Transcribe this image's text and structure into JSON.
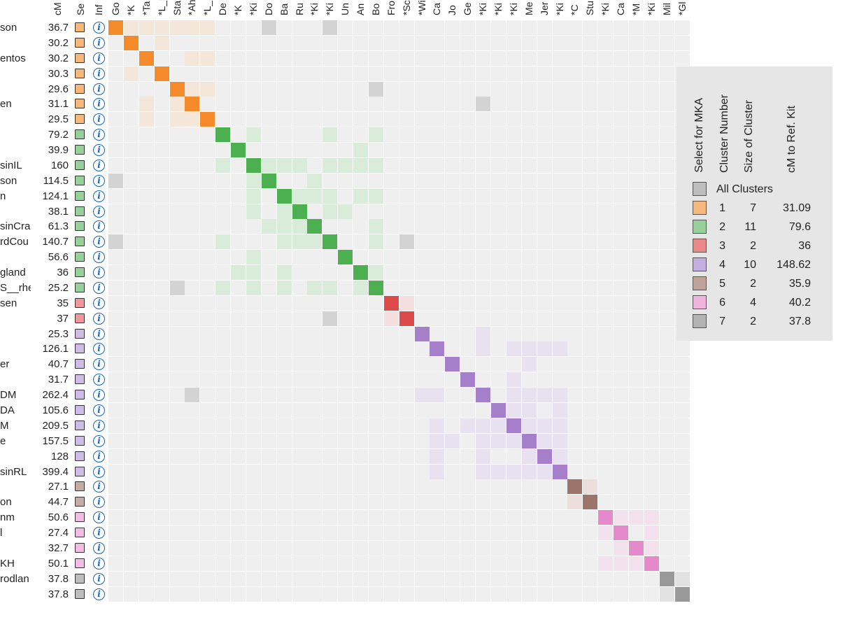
{
  "headers": {
    "name": "",
    "cm": "cM",
    "select": "Se",
    "info": "Inf",
    "matches": [
      "Go",
      "*K",
      "*Ta",
      "*L_l",
      "Sta",
      "*Ah",
      "*L_",
      "De",
      "*K",
      "*Ki",
      "Do",
      "Ba",
      "Ru",
      "*Ki",
      "*Ki",
      "Un",
      "An",
      "Bo",
      "Fro",
      "*Sc",
      "*Wi",
      "Ca",
      "Jo",
      "Ge",
      "*Ki",
      "*Ki",
      "*Ki",
      "Me",
      "Jer",
      "*Ki",
      "*C",
      "Stu",
      "*Ki",
      "Ca",
      "*M",
      "*Ki",
      "Mil",
      "*Gl"
    ]
  },
  "rows": [
    {
      "name": "son",
      "cm": "36.7"
    },
    {
      "name": "",
      "cm": "30.2"
    },
    {
      "name": "entos",
      "cm": "30.2"
    },
    {
      "name": "",
      "cm": "30.3"
    },
    {
      "name": "",
      "cm": "29.6"
    },
    {
      "name": "en",
      "cm": "31.1"
    },
    {
      "name": "",
      "cm": "29.5"
    },
    {
      "name": "",
      "cm": "79.2"
    },
    {
      "name": "",
      "cm": "39.9"
    },
    {
      "name": "sinIL",
      "cm": "160"
    },
    {
      "name": "son",
      "cm": "114.5"
    },
    {
      "name": "n",
      "cm": "124.1"
    },
    {
      "name": "",
      "cm": "38.1"
    },
    {
      "name": "sinCra",
      "cm": "61.3"
    },
    {
      "name": "rdCou",
      "cm": "140.7"
    },
    {
      "name": "",
      "cm": "56.6"
    },
    {
      "name": "gland",
      "cm": "36"
    },
    {
      "name": "S__rhe",
      "cm": "25.2"
    },
    {
      "name": "sen",
      "cm": "35"
    },
    {
      "name": "",
      "cm": "37"
    },
    {
      "name": "",
      "cm": "25.3"
    },
    {
      "name": "",
      "cm": "126.1"
    },
    {
      "name": "er",
      "cm": "40.7"
    },
    {
      "name": "",
      "cm": "31.7"
    },
    {
      "name": "DM",
      "cm": "262.4"
    },
    {
      "name": "DA",
      "cm": "105.6"
    },
    {
      "name": "M",
      "cm": "209.5"
    },
    {
      "name": "e",
      "cm": "157.5"
    },
    {
      "name": "",
      "cm": "128"
    },
    {
      "name": "sinRL",
      "cm": "399.4"
    },
    {
      "name": "",
      "cm": "27.1"
    },
    {
      "name": "on",
      "cm": "44.7"
    },
    {
      "name": "nm",
      "cm": "50.6"
    },
    {
      "name": "l",
      "cm": "27.4"
    },
    {
      "name": "",
      "cm": "32.7"
    },
    {
      "name": "KH",
      "cm": "50.1"
    },
    {
      "name": "rodlan",
      "cm": "37.8"
    },
    {
      "name": "",
      "cm": "37.8"
    }
  ],
  "info_icon": "i",
  "clusters": [
    {
      "start": 0,
      "size": 7,
      "dark": "#f58a2a",
      "light": "#f5e6da",
      "box": "#f6b87a"
    },
    {
      "start": 7,
      "size": 11,
      "dark": "#4caf50",
      "light": "#d9ecd9",
      "box": "#98d09b"
    },
    {
      "start": 18,
      "size": 2,
      "dark": "#dc4a4a",
      "light": "#f4dede",
      "box": "#f0999c"
    },
    {
      "start": 20,
      "size": 10,
      "dark": "#a67fca",
      "light": "#e8e1f0",
      "box": "#cdbde6"
    },
    {
      "start": 30,
      "size": 2,
      "dark": "#9c7469",
      "light": "#ecdfdb",
      "box": "#c6aca4"
    },
    {
      "start": 32,
      "size": 4,
      "dark": "#e588cc",
      "light": "#f3e2ee",
      "box": "#f2bde4"
    },
    {
      "start": 36,
      "size": 2,
      "dark": "#999999",
      "light": "#e2e2e2",
      "box": "#bdbdbd"
    }
  ],
  "colors": {
    "empty": "#efefef",
    "cross": "#d3d3d3"
  },
  "light_cells": [
    [
      0,
      1
    ],
    [
      0,
      2
    ],
    [
      0,
      3
    ],
    [
      0,
      4
    ],
    [
      0,
      5
    ],
    [
      0,
      6
    ],
    [
      1,
      3
    ],
    [
      2,
      5
    ],
    [
      2,
      6
    ],
    [
      3,
      1
    ],
    [
      4,
      5
    ],
    [
      4,
      6
    ],
    [
      5,
      2
    ],
    [
      5,
      4
    ],
    [
      6,
      2
    ],
    [
      6,
      4
    ],
    [
      6,
      5
    ],
    [
      7,
      9
    ],
    [
      7,
      14
    ],
    [
      7,
      17
    ],
    [
      8,
      16
    ],
    [
      9,
      7
    ],
    [
      9,
      10
    ],
    [
      9,
      11
    ],
    [
      9,
      12
    ],
    [
      9,
      14
    ],
    [
      9,
      15
    ],
    [
      9,
      16
    ],
    [
      9,
      17
    ],
    [
      10,
      9
    ],
    [
      10,
      13
    ],
    [
      11,
      9
    ],
    [
      11,
      12
    ],
    [
      11,
      13
    ],
    [
      11,
      14
    ],
    [
      11,
      16
    ],
    [
      11,
      17
    ],
    [
      12,
      9
    ],
    [
      12,
      11
    ],
    [
      12,
      14
    ],
    [
      12,
      15
    ],
    [
      13,
      10
    ],
    [
      13,
      11
    ],
    [
      13,
      12
    ],
    [
      13,
      17
    ],
    [
      14,
      7
    ],
    [
      14,
      11
    ],
    [
      14,
      12
    ],
    [
      14,
      13
    ],
    [
      14,
      17
    ],
    [
      15,
      9
    ],
    [
      16,
      8
    ],
    [
      16,
      9
    ],
    [
      16,
      11
    ],
    [
      16,
      17
    ],
    [
      17,
      7
    ],
    [
      17,
      9
    ],
    [
      17,
      11
    ],
    [
      17,
      13
    ],
    [
      17,
      14
    ],
    [
      17,
      16
    ],
    [
      18,
      19
    ],
    [
      19,
      18
    ],
    [
      20,
      24
    ],
    [
      21,
      24
    ],
    [
      21,
      26
    ],
    [
      21,
      27
    ],
    [
      21,
      28
    ],
    [
      21,
      29
    ],
    [
      22,
      27
    ],
    [
      23,
      26
    ],
    [
      24,
      20
    ],
    [
      24,
      21
    ],
    [
      24,
      26
    ],
    [
      24,
      27
    ],
    [
      24,
      28
    ],
    [
      24,
      29
    ],
    [
      25,
      26
    ],
    [
      25,
      27
    ],
    [
      25,
      29
    ],
    [
      26,
      21
    ],
    [
      26,
      23
    ],
    [
      26,
      24
    ],
    [
      26,
      25
    ],
    [
      26,
      27
    ],
    [
      26,
      28
    ],
    [
      26,
      29
    ],
    [
      27,
      21
    ],
    [
      27,
      22
    ],
    [
      27,
      24
    ],
    [
      27,
      25
    ],
    [
      27,
      26
    ],
    [
      27,
      28
    ],
    [
      27,
      29
    ],
    [
      28,
      21
    ],
    [
      28,
      24
    ],
    [
      28,
      27
    ],
    [
      28,
      29
    ],
    [
      29,
      21
    ],
    [
      29,
      24
    ],
    [
      29,
      25
    ],
    [
      29,
      26
    ],
    [
      29,
      27
    ],
    [
      29,
      28
    ],
    [
      30,
      31
    ],
    [
      31,
      30
    ],
    [
      32,
      33
    ],
    [
      32,
      34
    ],
    [
      32,
      35
    ],
    [
      33,
      32
    ],
    [
      33,
      35
    ],
    [
      34,
      33
    ],
    [
      34,
      35
    ],
    [
      35,
      32
    ],
    [
      35,
      33
    ],
    [
      35,
      34
    ],
    [
      36,
      37
    ],
    [
      37,
      36
    ]
  ],
  "cross_cells": [
    [
      0,
      10
    ],
    [
      0,
      14
    ],
    [
      4,
      17
    ],
    [
      5,
      24
    ],
    [
      10,
      0
    ],
    [
      14,
      0
    ],
    [
      14,
      19
    ],
    [
      17,
      4
    ],
    [
      19,
      14
    ],
    [
      24,
      5
    ]
  ],
  "legend": {
    "col_select": "Select for MKA",
    "col_cluster": "Cluster Number",
    "col_size": "Size of Cluster",
    "col_cm": "cM to Ref. Kit",
    "all_label": "All Clusters",
    "all_color": "#bdbdbd",
    "items": [
      {
        "num": "1",
        "size": "7",
        "cm": "31.09",
        "color": "#f6b87a"
      },
      {
        "num": "2",
        "size": "11",
        "cm": "79.6",
        "color": "#98d09b"
      },
      {
        "num": "3",
        "size": "2",
        "cm": "36",
        "color": "#e88888"
      },
      {
        "num": "4",
        "size": "10",
        "cm": "148.62",
        "color": "#c3aee0"
      },
      {
        "num": "5",
        "size": "2",
        "cm": "35.9",
        "color": "#bfa39b"
      },
      {
        "num": "6",
        "size": "4",
        "cm": "40.2",
        "color": "#eeb3df"
      },
      {
        "num": "7",
        "size": "2",
        "cm": "37.8",
        "color": "#b3b3b3"
      }
    ]
  }
}
